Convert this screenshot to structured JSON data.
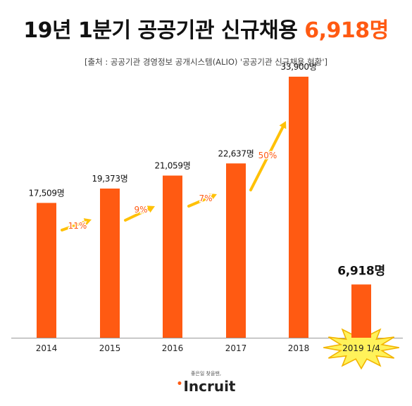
{
  "title": {
    "main": "19년 1분기 공공기관 신규채용 ",
    "highlight": "6,918명"
  },
  "source": "[출처 : 공공기관 경영정보 공개시스템(ALIO) '공공기관 신규채용 현황']",
  "colors": {
    "bar": "#ff5a12",
    "growth": "#ffc107",
    "growth_label": "#ff5a12",
    "burst_fill": "#fff25a",
    "burst_stroke": "#f2b400"
  },
  "chart_data": {
    "type": "bar",
    "categories": [
      "2014",
      "2015",
      "2016",
      "2017",
      "2018",
      "2019 1/4"
    ],
    "values": [
      17509,
      19373,
      21059,
      22637,
      33900,
      6918
    ],
    "value_labels": [
      "17,509명",
      "19,373명",
      "21,059명",
      "22,637명",
      "33,900명",
      "6,918명"
    ],
    "growth_labels": [
      "11%",
      "9%",
      "7%",
      "50%"
    ],
    "ylim": [
      0,
      36000
    ],
    "grid": false,
    "highlight_category": "2019 1/4"
  },
  "logo": {
    "tagline": "좋은일 찾을땐,",
    "name": "Incruit"
  }
}
